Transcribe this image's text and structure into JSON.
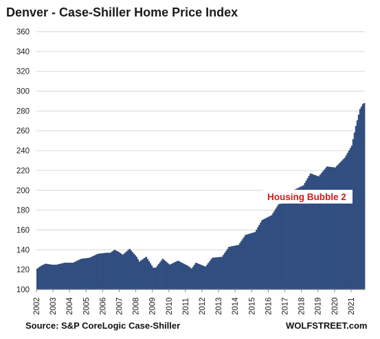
{
  "title": "Denver  - Case-Shiller Home Price Index",
  "source": "Source: S&P CoreLogic Case-Shiller",
  "brand": "WOLFSTREET.com",
  "chart_data": {
    "type": "bar",
    "title": "Denver  - Case-Shiller Home Price Index",
    "xlabel": "",
    "ylabel": "",
    "ylim": [
      100,
      360
    ],
    "y_ticks": [
      100,
      120,
      140,
      160,
      180,
      200,
      220,
      240,
      260,
      280,
      300,
      320,
      340,
      360
    ],
    "x_ticks": [
      "2002",
      "2003",
      "2004",
      "2005",
      "2006",
      "2007",
      "2008",
      "2009",
      "2010",
      "2011",
      "2012",
      "2013",
      "2014",
      "2015",
      "2016",
      "2017",
      "2018",
      "2019",
      "2020",
      "2021"
    ],
    "grid": "horizontal",
    "frequency": "monthly",
    "start": "2002-01",
    "bar_color": "#2d4a7c",
    "annotations": [
      {
        "text": "Housing Bubble 2",
        "color": "#d21a1a"
      }
    ],
    "anchors": [
      [
        "2002-01",
        121
      ],
      [
        "2002-04",
        124
      ],
      [
        "2002-07",
        126
      ],
      [
        "2002-12",
        125
      ],
      [
        "2003-03",
        125
      ],
      [
        "2003-09",
        127
      ],
      [
        "2004-03",
        127
      ],
      [
        "2004-09",
        131
      ],
      [
        "2005-03",
        132
      ],
      [
        "2005-09",
        136
      ],
      [
        "2006-03",
        137
      ],
      [
        "2006-06",
        137
      ],
      [
        "2006-09",
        140
      ],
      [
        "2006-12",
        138
      ],
      [
        "2007-03",
        135
      ],
      [
        "2007-08",
        141
      ],
      [
        "2008-01",
        133
      ],
      [
        "2008-03",
        128
      ],
      [
        "2008-08",
        133
      ],
      [
        "2009-01",
        122
      ],
      [
        "2009-03",
        122
      ],
      [
        "2009-08",
        131
      ],
      [
        "2010-01",
        125
      ],
      [
        "2010-07",
        129
      ],
      [
        "2011-02",
        124
      ],
      [
        "2011-05",
        121
      ],
      [
        "2011-08",
        127
      ],
      [
        "2012-03",
        123
      ],
      [
        "2012-08",
        132
      ],
      [
        "2013-03",
        133
      ],
      [
        "2013-08",
        143
      ],
      [
        "2014-03",
        145
      ],
      [
        "2014-08",
        155
      ],
      [
        "2015-03",
        158
      ],
      [
        "2015-08",
        170
      ],
      [
        "2016-03",
        175
      ],
      [
        "2016-08",
        186
      ],
      [
        "2017-03",
        188
      ],
      [
        "2017-08",
        201
      ],
      [
        "2018-02",
        205
      ],
      [
        "2018-07",
        217
      ],
      [
        "2019-01",
        214
      ],
      [
        "2019-07",
        224
      ],
      [
        "2020-01",
        223
      ],
      [
        "2020-08",
        233
      ],
      [
        "2021-01",
        245
      ],
      [
        "2021-04",
        265
      ],
      [
        "2021-07",
        282
      ],
      [
        "2021-09",
        287
      ],
      [
        "2021-10",
        288
      ]
    ]
  }
}
